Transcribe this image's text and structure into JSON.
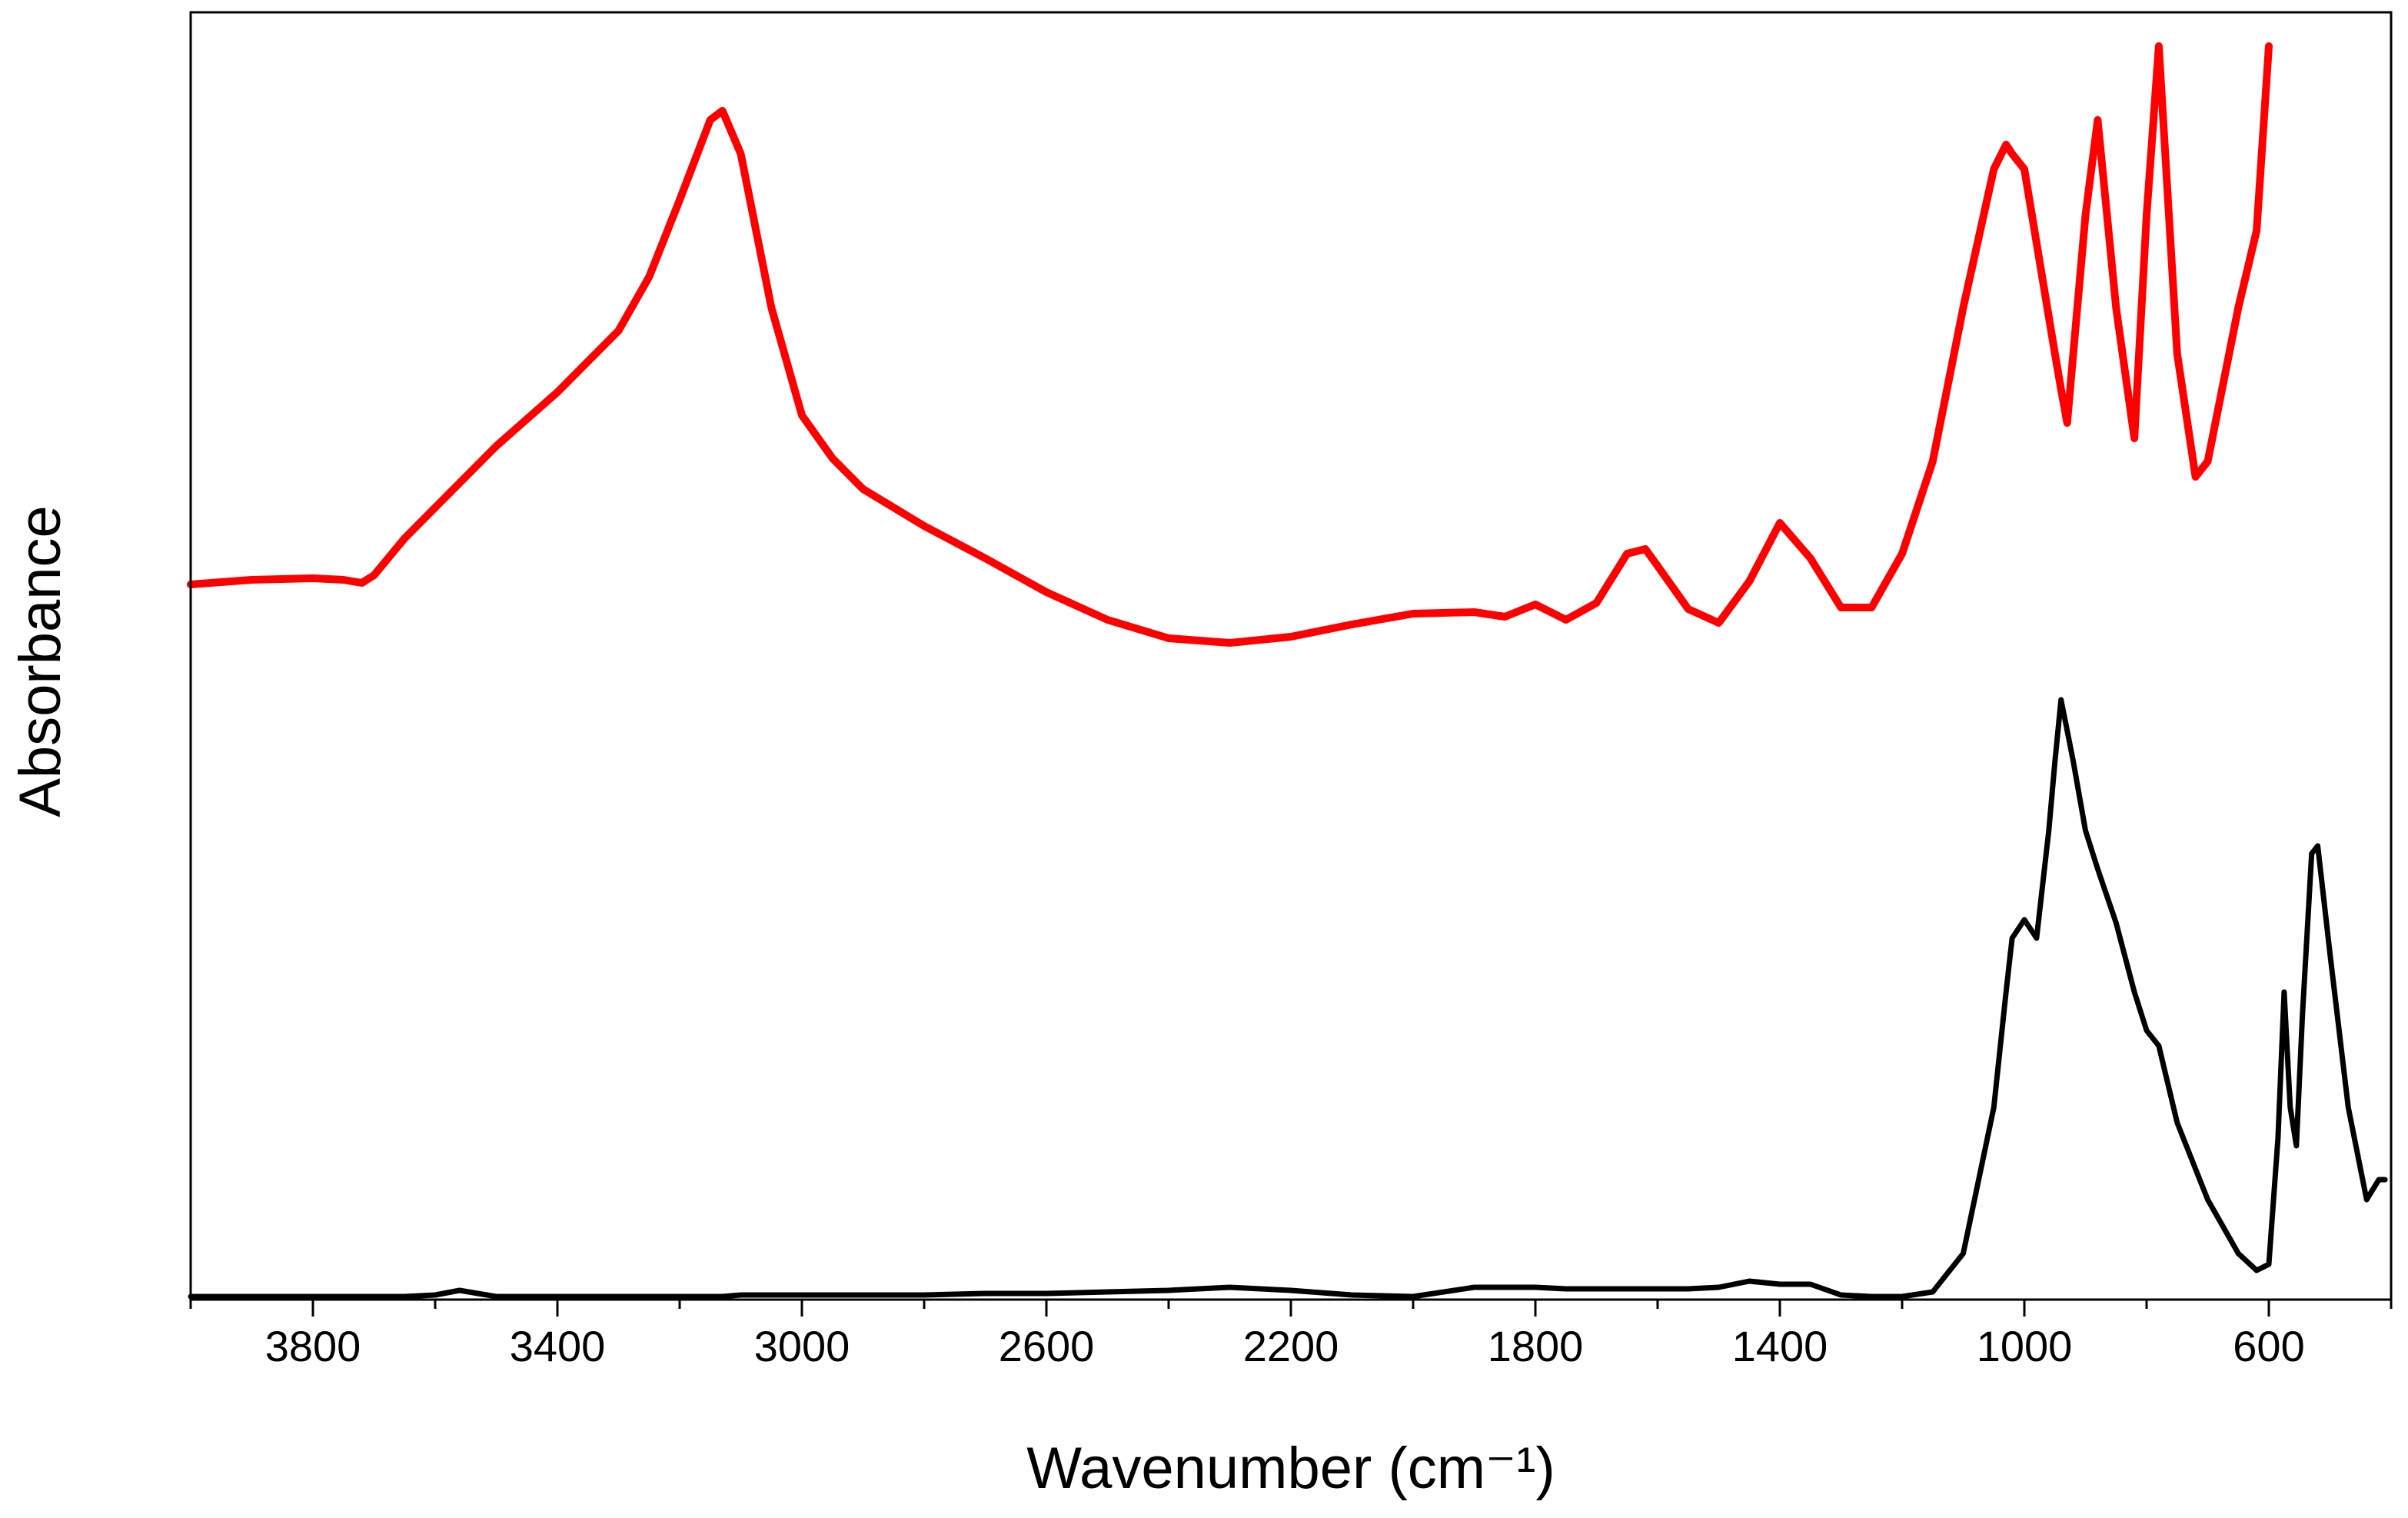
{
  "chart_data": {
    "type": "line",
    "x_label": "Wavenumber (cm⁻¹)",
    "y_label": "Absorbance",
    "x": [
      4000,
      3900,
      3800,
      3750,
      3720,
      3700,
      3650,
      3600,
      3560,
      3500,
      3400,
      3300,
      3250,
      3200,
      3150,
      3130,
      3100,
      3050,
      3000,
      2950,
      2900,
      2850,
      2800,
      2700,
      2600,
      2500,
      2400,
      2300,
      2200,
      2100,
      2000,
      1900,
      1850,
      1800,
      1750,
      1700,
      1650,
      1620,
      1600,
      1550,
      1500,
      1450,
      1400,
      1350,
      1300,
      1250,
      1200,
      1150,
      1100,
      1050,
      1030,
      1020,
      1000,
      980,
      960,
      950,
      940,
      930,
      920,
      900,
      880,
      850,
      820,
      800,
      780,
      750,
      720,
      700,
      650,
      620,
      600,
      585,
      575,
      565,
      555,
      545,
      530,
      520,
      500,
      470,
      440,
      420,
      410
    ],
    "series": [
      {
        "color": "#ff0000",
        "values": [
          465,
          468,
          469,
          468,
          466,
          471,
          495,
          515,
          531,
          555,
          590,
          630,
          665,
          715,
          767,
          773,
          745,
          645,
          575,
          547,
          527,
          515,
          503,
          482,
          460,
          442,
          430,
          427,
          431,
          439,
          446,
          447,
          444,
          452,
          442,
          453,
          485,
          488,
          477,
          449,
          440,
          467,
          505,
          482,
          450,
          450,
          485,
          545,
          645,
          735,
          751,
          745,
          735,
          687,
          639,
          615,
          592,
          570,
          615,
          705,
          767,
          645,
          560,
          705,
          815,
          615,
          535,
          545,
          645,
          695,
          815,
          null,
          null,
          null,
          null,
          null,
          null,
          null,
          null,
          null,
          null,
          null,
          null
        ]
      },
      {
        "color": "#000000",
        "values": [
          2,
          2,
          2,
          2,
          2,
          2,
          2,
          3,
          6,
          2,
          2,
          2,
          2,
          2,
          2,
          2,
          3,
          3,
          3,
          3,
          3,
          3,
          3,
          4,
          4,
          5,
          6,
          8,
          6,
          3,
          2,
          8,
          8,
          8,
          7,
          7,
          7,
          7,
          7,
          7,
          8,
          12,
          10,
          10,
          3,
          2,
          2,
          5,
          30,
          125,
          200,
          235,
          247,
          235,
          305,
          350,
          390,
          370,
          350,
          305,
          280,
          245,
          200,
          175,
          165,
          115,
          85,
          65,
          30,
          19,
          23,
          105,
          200,
          125,
          100,
          185,
          290,
          295,
          225,
          125,
          65,
          78,
          78
        ]
      }
    ],
    "xlim": [
      4000,
      400
    ],
    "ylim": [
      0,
      837
    ],
    "xticks": [
      3800,
      3400,
      3000,
      2600,
      2200,
      1800,
      1400,
      1000,
      600
    ],
    "xminorticks": [
      4000,
      3600,
      3200,
      2800,
      2400,
      2000,
      1600,
      1200,
      800,
      400
    ]
  }
}
